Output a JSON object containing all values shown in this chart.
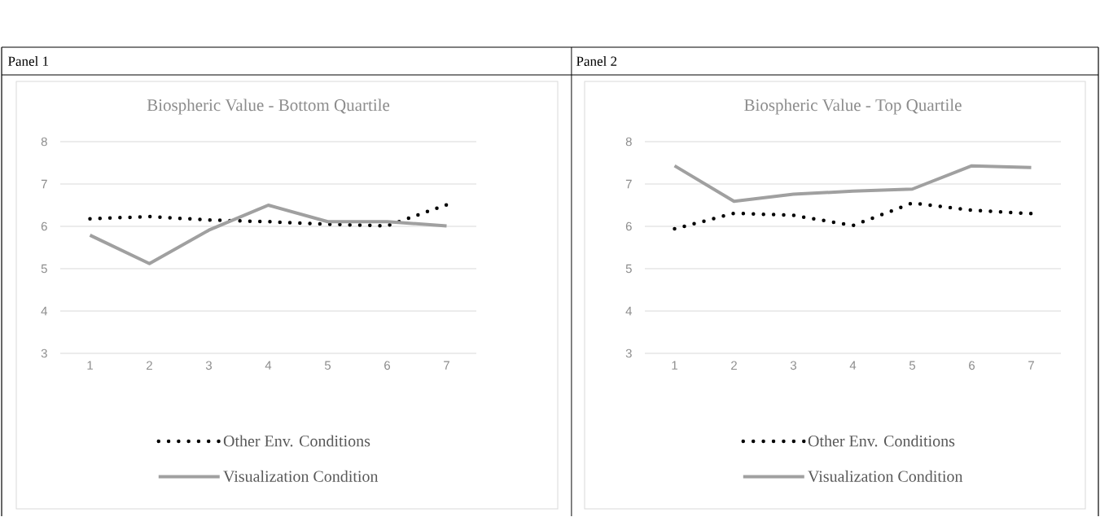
{
  "chart_data": [
    {
      "type": "line",
      "title": "Biospheric Value - Bottom Quartile",
      "annotations": [
        "Panel 1"
      ],
      "categories": [
        "1",
        "2",
        "3",
        "4",
        "5",
        "6",
        "7"
      ],
      "ylim": [
        3,
        8
      ],
      "yticks": [
        3,
        4,
        5,
        6,
        7,
        8
      ],
      "grid": "y",
      "legend": "bottom",
      "marker": "none",
      "series": [
        {
          "name": "Other Env. Conditions",
          "color": "#000000",
          "line_style": "dotted",
          "values": [
            6.18,
            6.23,
            6.15,
            6.11,
            6.05,
            6.01,
            6.51
          ]
        },
        {
          "name": "Visualization Condition",
          "color": "#a0a0a0",
          "line_style": "solid",
          "values": [
            5.79,
            5.12,
            5.91,
            6.5,
            6.11,
            6.11,
            6.01
          ]
        }
      ]
    },
    {
      "type": "line",
      "title": "Biospheric Value - Top Quartile",
      "annotations": [
        "Panel 2"
      ],
      "categories": [
        "1",
        "2",
        "3",
        "4",
        "5",
        "6",
        "7"
      ],
      "ylim": [
        3,
        8
      ],
      "yticks": [
        3,
        4,
        5,
        6,
        7,
        8
      ],
      "grid": "y",
      "legend": "bottom",
      "marker": "none",
      "series": [
        {
          "name": "Other Env. Conditions",
          "color": "#000000",
          "line_style": "dotted",
          "values": [
            5.94,
            6.31,
            6.26,
            6.02,
            6.55,
            6.38,
            6.3
          ]
        },
        {
          "name": "Visualization Condition",
          "color": "#a0a0a0",
          "line_style": "solid",
          "values": [
            7.43,
            6.59,
            6.76,
            6.83,
            6.88,
            7.43,
            7.39
          ]
        }
      ]
    }
  ]
}
